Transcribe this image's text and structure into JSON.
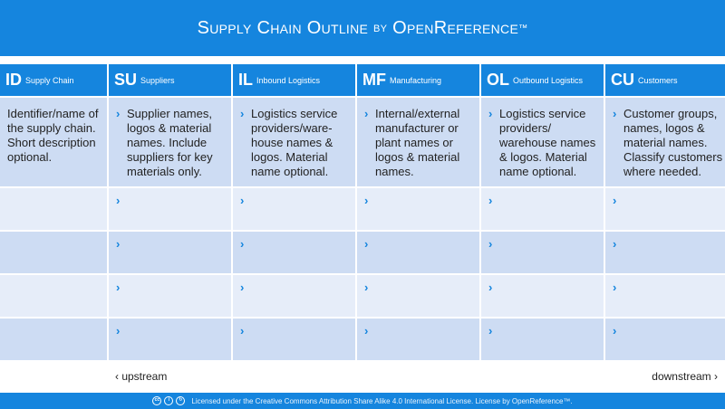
{
  "header": {
    "title_main": "Supply Chain Outline",
    "title_by": "by",
    "title_brand": "OpenReference",
    "title_tm": "™"
  },
  "columns": [
    {
      "abbr": "ID",
      "name": "Supply Chain",
      "description": "Identifier/name of the supply chain. Short description optional.",
      "arrow": false
    },
    {
      "abbr": "SU",
      "name": "Suppliers",
      "description": "Supplier names, logos & material names. Include suppliers for key materials only.",
      "arrow": true
    },
    {
      "abbr": "IL",
      "name": "Inbound Logistics",
      "description": "Logistics service providers/ware-house names & logos. Material name optional.",
      "arrow": true
    },
    {
      "abbr": "MF",
      "name": "Manufacturing",
      "description": "Internal/external manufacturer or plant names or logos & material names.",
      "arrow": true
    },
    {
      "abbr": "OL",
      "name": "Outbound Logistics",
      "description": "Logistics service providers/ warehouse names & logos. Material name optional.",
      "arrow": true
    },
    {
      "abbr": "CU",
      "name": "Customers",
      "description": "Customer groups, names, logos & material names. Classify customers where needed.",
      "arrow": true
    }
  ],
  "empty_rows": 4,
  "arrow_glyph": "›",
  "nav": {
    "upstream": "‹ upstream",
    "downstream": "downstream ›"
  },
  "footer": {
    "license": "Licensed under the Creative Commons Attribution Share Alike 4.0 International License. License by OpenReference™.",
    "icons": [
      "cc-icon",
      "by-icon",
      "sa-icon"
    ]
  },
  "colors": {
    "accent": "#1585de",
    "row_mid": "#cddcf3",
    "row_light": "#e6edf9"
  }
}
